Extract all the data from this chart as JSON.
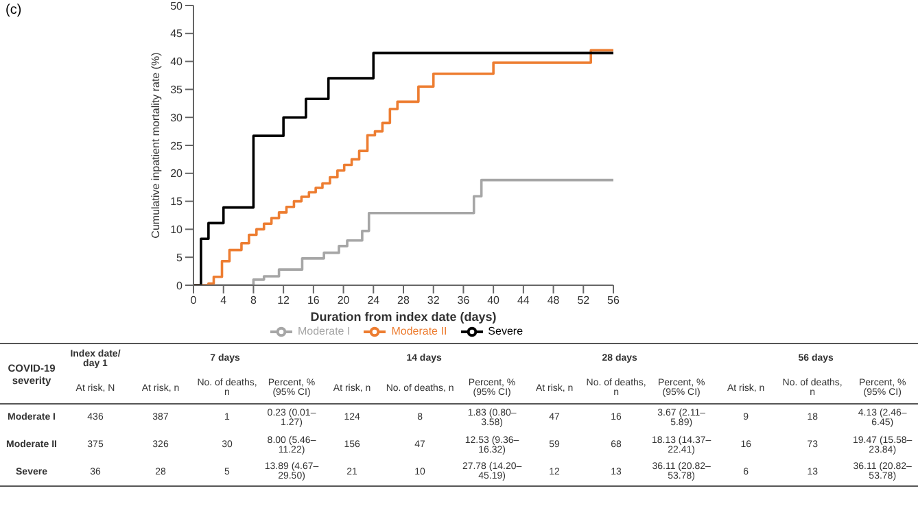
{
  "chart_data": [
    {
      "type": "step",
      "xlabel": "Duration from index date (days)",
      "ylabel": "Cumulative inpatient mortality rate (%)",
      "annotations": [
        "(c)"
      ],
      "xlim": [
        0,
        56
      ],
      "xticks": [
        0,
        4,
        8,
        12,
        16,
        20,
        24,
        28,
        32,
        36,
        40,
        44,
        48,
        52,
        56
      ],
      "ylim": [
        0,
        50
      ],
      "yticks": [
        0,
        5,
        10,
        15,
        20,
        25,
        30,
        35,
        40,
        45,
        50
      ],
      "grid": false,
      "legend": "bottom",
      "marker": "none",
      "line_style": "solid",
      "series": [
        {
          "name": "Moderate I",
          "color": "#a6a6a6",
          "x": [
            0,
            8,
            9.4,
            11.4,
            14.5,
            17.4,
            19.4,
            20.5,
            22.5,
            23.4,
            37.4,
            38.4,
            56
          ],
          "values": [
            0,
            1,
            1.6,
            2.8,
            4.8,
            5.8,
            7,
            8,
            9.7,
            12.9,
            15.9,
            18.8,
            18.8
          ]
        },
        {
          "name": "Moderate II",
          "color": "#ed7d31",
          "x": [
            0,
            2,
            2.7,
            3.8,
            4.8,
            6.4,
            7.4,
            8.4,
            9.4,
            10.4,
            11.4,
            12.4,
            13.4,
            14.4,
            15.4,
            16.3,
            17.2,
            18.2,
            19.2,
            20.1,
            21.1,
            22.1,
            23.2,
            24.2,
            25.2,
            26.2,
            27.2,
            30,
            32,
            40,
            53,
            56
          ],
          "values": [
            0,
            0.3,
            1.5,
            4.3,
            6.3,
            7.5,
            9,
            10,
            11,
            12,
            13,
            14,
            15,
            15.8,
            16.6,
            17.4,
            18.2,
            19.3,
            20.5,
            21.5,
            22.5,
            24,
            26.8,
            27.5,
            29,
            31.5,
            32.8,
            35.5,
            37.8,
            39.8,
            42,
            42
          ]
        },
        {
          "name": "Severe",
          "color": "#000000",
          "x": [
            0,
            1,
            2,
            4,
            8,
            12,
            15,
            18,
            24,
            56
          ],
          "values": [
            0,
            8.3,
            11.1,
            13.9,
            26.7,
            30,
            33.3,
            37,
            41.5,
            41.5
          ]
        }
      ]
    },
    {
      "type": "other",
      "annotations": [
        "COVID-19 severity",
        "Index date/ day 1",
        "7 days",
        "14 days",
        "28 days",
        "56 days",
        "At risk, N",
        "At risk, n",
        "No. of deaths, n",
        "Percent, % (95% CI)",
        "At risk, n",
        "No. of deaths, n",
        "Percent, % (95% CI)",
        "At risk, n",
        "No. of deaths, n",
        "Percent, % (95% CI)",
        "At risk, n",
        "No. of deaths, n",
        "Percent, % (95% CI)",
        "Moderate I",
        "436",
        "387",
        "1",
        "0.23 (0.01–1.27)",
        "124",
        "8",
        "1.83 (0.80–3.58)",
        "47",
        "16",
        "3.67 (2.11–5.89)",
        "9",
        "18",
        "4.13 (2.46–6.45)",
        "Moderate II",
        "375",
        "326",
        "30",
        "8.00 (5.46–11.22)",
        "156",
        "47",
        "12.53 (9.36–16.32)",
        "59",
        "68",
        "18.13 (14.37–22.41)",
        "16",
        "73",
        "19.47 (15.58–23.84)",
        "Severe",
        "36",
        "28",
        "5",
        "13.89 (4.67–29.50)",
        "21",
        "10",
        "27.78 (14.20–45.19)",
        "12",
        "13",
        "36.11 (20.82–53.78)",
        "6",
        "13",
        "36.11 (20.82–53.78)"
      ]
    }
  ]
}
